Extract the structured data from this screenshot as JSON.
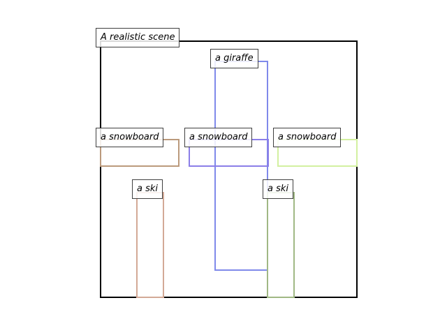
{
  "scene": {
    "caption": "A realistic scene"
  },
  "objects": [
    {
      "id": "giraffe",
      "label": "a giraffe",
      "color": "#7f89ea"
    },
    {
      "id": "snowboard-left",
      "label": "a snowboard",
      "color": "#bb9a7c"
    },
    {
      "id": "snowboard-middle",
      "label": "a snowboard",
      "color": "#8b7ee8"
    },
    {
      "id": "snowboard-right",
      "label": "a snowboard",
      "color": "#d2f0a0"
    },
    {
      "id": "ski-left",
      "label": "a ski",
      "color": "#d3a996"
    },
    {
      "id": "ski-right",
      "label": "a ski",
      "color": "#a0b884"
    }
  ]
}
